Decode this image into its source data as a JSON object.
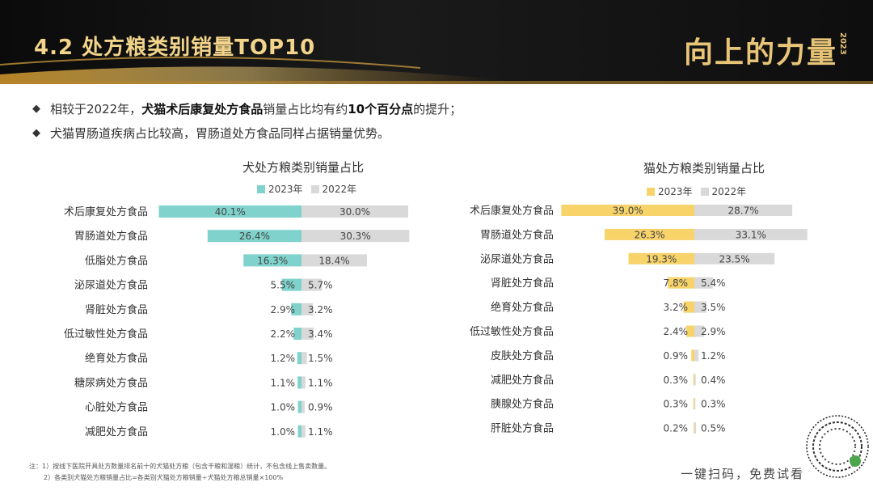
{
  "header": {
    "title": "4.2  处方粮类别销量TOP10",
    "brand": "向上的力量",
    "brand_year": "2023"
  },
  "bullets": [
    {
      "pre": "相较于2022年，",
      "bold1": "犬猫术后康复处方食品",
      "mid": "销量占比均有约",
      "bold2": "10个百分点",
      "post": "的提升；"
    },
    {
      "pre": "犬猫胃肠道疾病占比较高，胃肠道处方食品同样占据销量优势。",
      "bold1": "",
      "mid": "",
      "bold2": "",
      "post": ""
    }
  ],
  "chart_data": [
    {
      "type": "bar",
      "title": "犬处方粮类别销量占比",
      "categories": [
        "术后康复处方食品",
        "胃肠道处方食品",
        "低脂处方食品",
        "泌尿道处方食品",
        "肾脏处方食品",
        "低过敏性处方食品",
        "绝育处方食品",
        "糖尿病处方食品",
        "心脏处方食品",
        "减肥处方食品"
      ],
      "series": [
        {
          "name": "2023年",
          "color": "#7fd3cc",
          "values": [
            40.1,
            26.4,
            16.3,
            5.5,
            2.9,
            2.2,
            1.2,
            1.1,
            1.0,
            1.0
          ],
          "labels": [
            "40.1%",
            "26.4%",
            "16.3%",
            "5.5%",
            "2.9%",
            "2.2%",
            "1.2%",
            "1.1%",
            "1.0%",
            "1.0%"
          ]
        },
        {
          "name": "2022年",
          "color": "#d9d9d9",
          "values": [
            30.0,
            30.3,
            18.4,
            5.7,
            3.2,
            3.4,
            1.5,
            1.1,
            0.9,
            1.1
          ],
          "labels": [
            "30.0%",
            "30.3%",
            "18.4%",
            "5.7%",
            "3.2%",
            "3.4%",
            "1.5%",
            "1.1%",
            "0.9%",
            "1.1%"
          ]
        }
      ]
    },
    {
      "type": "bar",
      "title": "猫处方粮类别销量占比",
      "categories": [
        "术后康复处方食品",
        "胃肠道处方食品",
        "泌尿道处方食品",
        "肾脏处方食品",
        "绝育处方食品",
        "低过敏性处方食品",
        "皮肤处方食品",
        "减肥处方食品",
        "胰腺处方食品",
        "肝脏处方食品"
      ],
      "series": [
        {
          "name": "2023年",
          "color": "#f7d36a",
          "values": [
            39.0,
            26.3,
            19.3,
            7.8,
            3.2,
            2.4,
            0.9,
            0.3,
            0.3,
            0.2
          ],
          "labels": [
            "39.0%",
            "26.3%",
            "19.3%",
            "7.8%",
            "3.2%",
            "2.4%",
            "0.9%",
            "0.3%",
            "0.3%",
            "0.2%"
          ]
        },
        {
          "name": "2022年",
          "color": "#d9d9d9",
          "values": [
            28.7,
            33.1,
            23.5,
            5.4,
            3.5,
            2.9,
            1.2,
            0.4,
            0.3,
            0.5
          ],
          "labels": [
            "28.7%",
            "33.1%",
            "23.5%",
            "5.4%",
            "3.5%",
            "2.9%",
            "1.2%",
            "0.4%",
            "0.3%",
            "0.5%"
          ]
        }
      ]
    }
  ],
  "notes": [
    "注：1）按线下医院开具处方数量排名前十的犬猫处方粮（包含干粮和湿粮）统计，不包含线上售卖数量。",
    "2）各类别犬猫处方粮销量占比=各类别犬猫处方粮销量÷犬猫处方粮总销量×100%"
  ],
  "footer": {
    "trial_text": "一键扫码，免费试看"
  }
}
